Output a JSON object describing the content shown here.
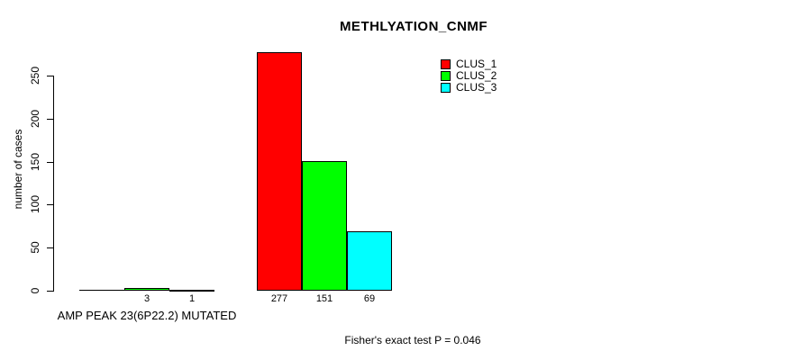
{
  "chart_data": {
    "type": "bar",
    "title": "METHLYATION_CNMF",
    "ylabel": "number of cases",
    "xlabel": "",
    "yticks": [
      0,
      50,
      100,
      150,
      200,
      250
    ],
    "ylim": [
      0,
      277
    ],
    "grid": false,
    "legend_position": "top-right",
    "background": "#ffffff",
    "axis_color": "#000000",
    "legend": [
      {
        "label": "CLUS_1",
        "color": "#ff0000"
      },
      {
        "label": "CLUS_2",
        "color": "#00ff00"
      },
      {
        "label": "CLUS_3",
        "color": "#00ffff"
      }
    ],
    "groups": [
      {
        "label": "AMP PEAK 23(6P22.2) MUTATED",
        "series": [
          "CLUS_1",
          "CLUS_2",
          "CLUS_3"
        ],
        "values": [
          0,
          3,
          1
        ],
        "bar_labels": [
          "",
          "3",
          "1"
        ]
      },
      {
        "label": "",
        "series": [
          "CLUS_1",
          "CLUS_2",
          "CLUS_3"
        ],
        "values": [
          277,
          151,
          69
        ],
        "bar_labels": [
          "277",
          "151",
          "69"
        ]
      }
    ],
    "annotation": "Fisher's exact test P = 0.046"
  }
}
